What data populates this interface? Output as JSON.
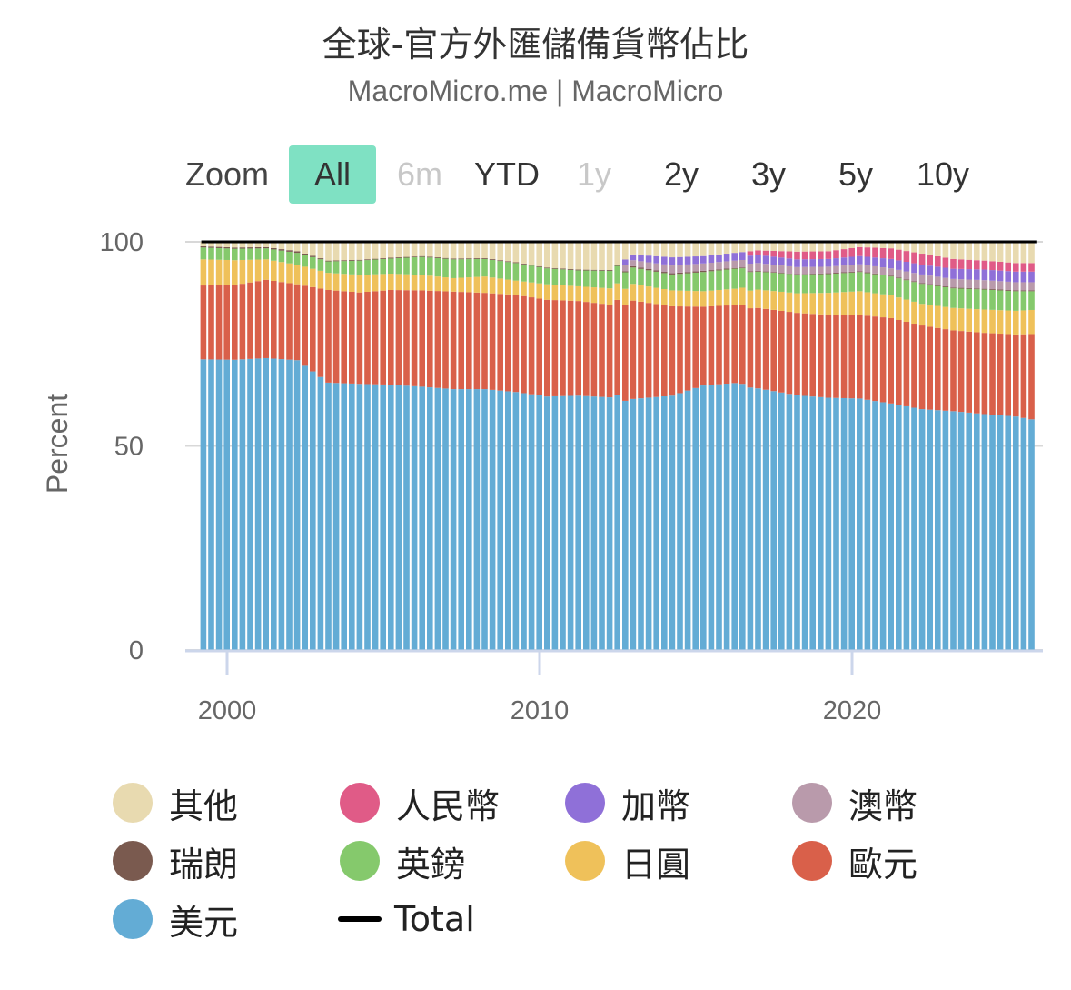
{
  "header": {
    "title": "全球-官方外匯儲備貨幣佔比",
    "subtitle": "MacroMicro.me | MacroMicro"
  },
  "zoom": {
    "label": "Zoom",
    "buttons": [
      {
        "label": "All",
        "state": "active"
      },
      {
        "label": "6m",
        "state": "disabled"
      },
      {
        "label": "YTD",
        "state": "normal"
      },
      {
        "label": "1y",
        "state": "disabled"
      },
      {
        "label": "2y",
        "state": "normal"
      },
      {
        "label": "3y",
        "state": "normal"
      },
      {
        "label": "5y",
        "state": "normal"
      },
      {
        "label": "10y",
        "state": "normal"
      }
    ],
    "active_color": "#7fe1c3"
  },
  "legend": [
    {
      "label": "其他",
      "color": "#e8dab0",
      "marker": "dot"
    },
    {
      "label": "人民幣",
      "color": "#e05b87",
      "marker": "dot"
    },
    {
      "label": "加幣",
      "color": "#8f70d8",
      "marker": "dot"
    },
    {
      "label": "澳幣",
      "color": "#b99aab",
      "marker": "dot"
    },
    {
      "label": "瑞朗",
      "color": "#7a5a4f",
      "marker": "dot"
    },
    {
      "label": "英鎊",
      "color": "#85c96c",
      "marker": "dot"
    },
    {
      "label": "日圓",
      "color": "#efc15a",
      "marker": "dot"
    },
    {
      "label": "歐元",
      "color": "#d9604a",
      "marker": "dot"
    },
    {
      "label": "美元",
      "color": "#63acd5",
      "marker": "dot"
    },
    {
      "label": "Total",
      "color": "#000000",
      "marker": "line"
    }
  ],
  "chart_data": {
    "type": "bar",
    "stacking": "percent",
    "title": "全球-官方外匯儲備貨幣佔比",
    "subtitle": "MacroMicro.me | MacroMicro",
    "ylabel": "Percent",
    "ylim": [
      0,
      100
    ],
    "yticks": [
      0,
      50,
      100
    ],
    "xticks": [
      "2000",
      "2010",
      "2020"
    ],
    "x_start": "1999Q1",
    "x_end": "2025Q3",
    "frequency": "quarterly",
    "anchors": [
      {
        "year": 1999.0,
        "usd": 71.2,
        "eur": 18.1,
        "jpy": 6.4,
        "gbp": 2.9,
        "chf": 0.3,
        "aud": 0,
        "cad": 0,
        "cny": 0,
        "other": 1.1
      },
      {
        "year": 2000.0,
        "usd": 71.1,
        "eur": 18.3,
        "jpy": 6.1,
        "gbp": 2.8,
        "chf": 0.3,
        "aud": 0,
        "cad": 0,
        "cny": 0,
        "other": 1.4
      },
      {
        "year": 2001.0,
        "usd": 71.5,
        "eur": 19.2,
        "jpy": 5.0,
        "gbp": 2.7,
        "chf": 0.3,
        "aud": 0,
        "cad": 0,
        "cny": 0,
        "other": 1.3
      },
      {
        "year": 2002.0,
        "usd": 71.0,
        "eur": 18.6,
        "jpy": 4.8,
        "gbp": 2.9,
        "chf": 0.4,
        "aud": 0,
        "cad": 0,
        "cny": 0,
        "other": 2.3
      },
      {
        "year": 2003.0,
        "usd": 65.5,
        "eur": 22.7,
        "jpy": 4.2,
        "gbp": 2.8,
        "chf": 0.2,
        "aud": 0,
        "cad": 0,
        "cny": 0,
        "other": 4.6
      },
      {
        "year": 2004.0,
        "usd": 65.2,
        "eur": 22.4,
        "jpy": 4.3,
        "gbp": 3.5,
        "chf": 0.2,
        "aud": 0,
        "cad": 0,
        "cny": 0,
        "other": 4.4
      },
      {
        "year": 2005.0,
        "usd": 65.0,
        "eur": 23.2,
        "jpy": 4.0,
        "gbp": 3.7,
        "chf": 0.2,
        "aud": 0,
        "cad": 0,
        "cny": 0,
        "other": 3.9
      },
      {
        "year": 2006.0,
        "usd": 64.5,
        "eur": 23.6,
        "jpy": 3.8,
        "gbp": 4.4,
        "chf": 0.2,
        "aud": 0,
        "cad": 0,
        "cny": 0,
        "other": 3.5
      },
      {
        "year": 2007.0,
        "usd": 63.9,
        "eur": 23.9,
        "jpy": 3.3,
        "gbp": 4.6,
        "chf": 0.2,
        "aud": 0,
        "cad": 0,
        "cny": 0,
        "other": 4.1
      },
      {
        "year": 2008.0,
        "usd": 63.9,
        "eur": 23.6,
        "jpy": 4.0,
        "gbp": 4.3,
        "chf": 0.2,
        "aud": 0,
        "cad": 0,
        "cny": 0,
        "other": 4.0
      },
      {
        "year": 2009.0,
        "usd": 63.2,
        "eur": 23.8,
        "jpy": 3.5,
        "gbp": 4.3,
        "chf": 0.2,
        "aud": 0,
        "cad": 0,
        "cny": 0,
        "other": 5.0
      },
      {
        "year": 2010.0,
        "usd": 62.1,
        "eur": 23.7,
        "jpy": 3.8,
        "gbp": 3.9,
        "chf": 0.2,
        "aud": 0,
        "cad": 0,
        "cny": 0,
        "other": 6.3
      },
      {
        "year": 2011.0,
        "usd": 62.3,
        "eur": 23.2,
        "jpy": 3.6,
        "gbp": 3.9,
        "chf": 0.2,
        "aud": 0,
        "cad": 0,
        "cny": 0,
        "other": 6.8
      },
      {
        "year": 2012.0,
        "usd": 61.9,
        "eur": 22.7,
        "jpy": 4.0,
        "gbp": 4.3,
        "chf": 0.2,
        "aud": 0,
        "cad": 0,
        "cny": 0,
        "other": 6.9
      },
      {
        "year": 2012.75,
        "usd": 61.5,
        "eur": 24.1,
        "jpy": 4.1,
        "gbp": 4.0,
        "chf": 0.3,
        "aud": 1.5,
        "cad": 1.4,
        "cny": 0,
        "other": 3.1
      },
      {
        "year": 2014.0,
        "usd": 62.3,
        "eur": 21.9,
        "jpy": 3.9,
        "gbp": 3.9,
        "chf": 0.3,
        "aud": 1.9,
        "cad": 2.0,
        "cny": 0,
        "other": 3.8
      },
      {
        "year": 2015.0,
        "usd": 64.8,
        "eur": 19.3,
        "jpy": 3.8,
        "gbp": 4.7,
        "chf": 0.3,
        "aud": 1.8,
        "cad": 1.8,
        "cny": 0,
        "other": 3.5
      },
      {
        "year": 2016.0,
        "usd": 65.4,
        "eur": 19.1,
        "jpy": 4.0,
        "gbp": 4.9,
        "chf": 0.2,
        "aud": 1.8,
        "cad": 1.9,
        "cny": 0,
        "other": 2.7
      },
      {
        "year": 2016.75,
        "usd": 64.1,
        "eur": 19.7,
        "jpy": 4.5,
        "gbp": 4.4,
        "chf": 0.2,
        "aud": 1.9,
        "cad": 2.0,
        "cny": 1.1,
        "other": 2.1
      },
      {
        "year": 2018.0,
        "usd": 62.4,
        "eur": 20.2,
        "jpy": 4.8,
        "gbp": 4.6,
        "chf": 0.1,
        "aud": 1.7,
        "cad": 1.9,
        "cny": 1.9,
        "other": 2.4
      },
      {
        "year": 2019.0,
        "usd": 61.8,
        "eur": 20.3,
        "jpy": 5.4,
        "gbp": 4.6,
        "chf": 0.2,
        "aud": 1.6,
        "cad": 1.9,
        "cny": 1.9,
        "other": 2.3
      },
      {
        "year": 2020.0,
        "usd": 61.6,
        "eur": 20.5,
        "jpy": 5.8,
        "gbp": 4.7,
        "chf": 0.2,
        "aud": 1.7,
        "cad": 2.0,
        "cny": 2.2,
        "other": 1.3
      },
      {
        "year": 2021.0,
        "usd": 60.4,
        "eur": 20.9,
        "jpy": 5.6,
        "gbp": 4.6,
        "chf": 0.2,
        "aud": 1.8,
        "cad": 2.3,
        "cny": 2.6,
        "other": 1.6
      },
      {
        "year": 2022.0,
        "usd": 59.0,
        "eur": 20.5,
        "jpy": 5.3,
        "gbp": 4.9,
        "chf": 0.2,
        "aud": 2.1,
        "cad": 2.4,
        "cny": 2.7,
        "other": 2.9
      },
      {
        "year": 2023.0,
        "usd": 58.5,
        "eur": 19.8,
        "jpy": 5.5,
        "gbp": 4.8,
        "chf": 0.2,
        "aud": 2.1,
        "cad": 2.5,
        "cny": 2.4,
        "other": 4.2
      },
      {
        "year": 2024.0,
        "usd": 57.8,
        "eur": 19.9,
        "jpy": 5.7,
        "gbp": 4.9,
        "chf": 0.2,
        "aud": 2.1,
        "cad": 2.6,
        "cny": 2.2,
        "other": 4.6
      },
      {
        "year": 2025.0,
        "usd": 57.2,
        "eur": 20.1,
        "jpy": 5.8,
        "gbp": 4.8,
        "chf": 0.2,
        "aud": 2.0,
        "cad": 2.6,
        "cny": 2.1,
        "other": 5.2
      },
      {
        "year": 2025.5,
        "usd": 56.5,
        "eur": 20.9,
        "jpy": 5.9,
        "gbp": 4.6,
        "chf": 0.2,
        "aud": 2.0,
        "cad": 2.6,
        "cny": 2.1,
        "other": 5.2
      }
    ],
    "stack_order": [
      "usd",
      "eur",
      "jpy",
      "gbp",
      "chf",
      "aud",
      "cad",
      "cny",
      "other"
    ],
    "total": 100,
    "grid": true,
    "legend_position": "bottom"
  }
}
